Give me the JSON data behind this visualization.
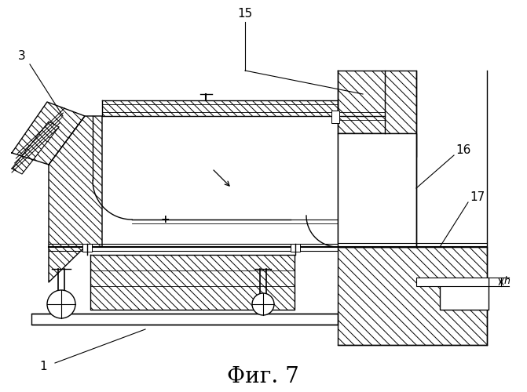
{
  "title": "Фиг. 7",
  "bg_color": "#ffffff",
  "line_color": "#000000",
  "title_fontsize": 20,
  "label_fontsize": 11
}
